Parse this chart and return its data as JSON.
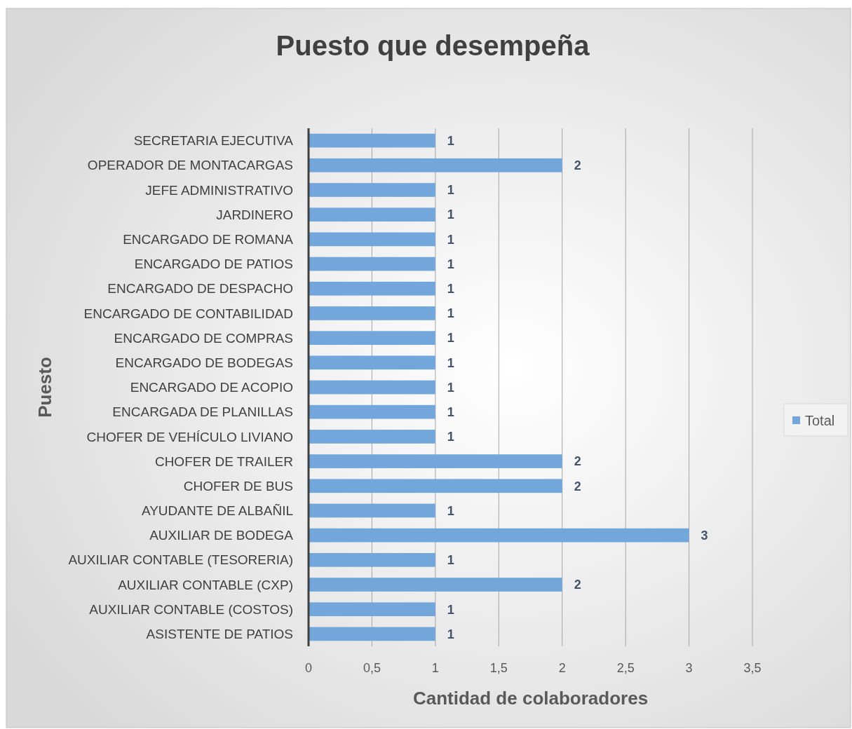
{
  "chart_data": {
    "type": "bar",
    "orientation": "horizontal",
    "title": "Puesto que desempeña",
    "xlabel": "Cantidad de colaboradores",
    "ylabel": "Puesto",
    "categories": [
      "SECRETARIA EJECUTIVA",
      "OPERADOR DE MONTACARGAS",
      "JEFE ADMINISTRATIVO",
      "JARDINERO",
      "ENCARGADO DE ROMANA",
      "ENCARGADO DE PATIOS",
      "ENCARGADO DE DESPACHO",
      "ENCARGADO DE CONTABILIDAD",
      "ENCARGADO DE COMPRAS",
      "ENCARGADO DE BODEGAS",
      "ENCARGADO DE ACOPIO",
      "ENCARGADA DE PLANILLAS",
      "CHOFER DE VEHÍCULO LIVIANO",
      "CHOFER DE TRAILER",
      "CHOFER DE BUS",
      "AYUDANTE DE ALBAÑIL",
      "AUXILIAR DE BODEGA",
      "AUXILIAR CONTABLE (TESORERIA)",
      "AUXILIAR CONTABLE (CXP)",
      "AUXILIAR CONTABLE (COSTOS)",
      "ASISTENTE DE PATIOS"
    ],
    "series": [
      {
        "name": "Total",
        "color": "#73a7dc",
        "values": [
          1,
          2,
          1,
          1,
          1,
          1,
          1,
          1,
          1,
          1,
          1,
          1,
          1,
          2,
          2,
          1,
          3,
          1,
          2,
          1,
          1
        ]
      }
    ],
    "xlim": [
      0,
      3.5
    ],
    "xticks": [
      0,
      {
        "value": 0.5,
        "label": "0,5"
      },
      1,
      {
        "value": 1.5,
        "label": "1,5"
      },
      2,
      {
        "value": 2.5,
        "label": "2,5"
      },
      3,
      {
        "value": 3.5,
        "label": "3,5"
      }
    ],
    "grid": "x",
    "legend": "right",
    "data_labels": true
  }
}
